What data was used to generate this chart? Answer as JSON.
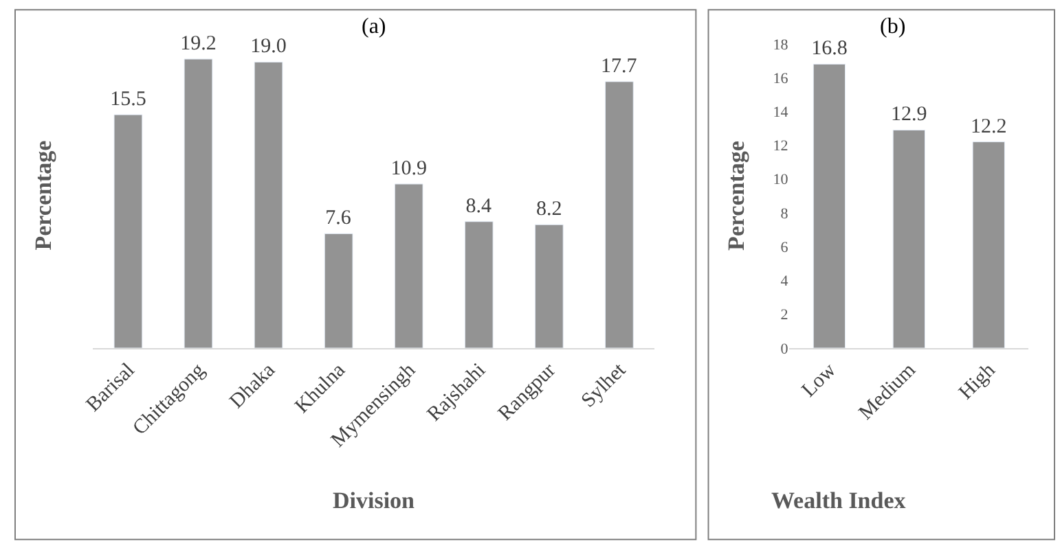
{
  "chart_data": [
    {
      "type": "bar",
      "title": "(a)",
      "xlabel": "Division",
      "ylabel": "Percentage",
      "categories": [
        "Barisal",
        "Chittagong",
        "Dhaka",
        "Khulna",
        "Mymensingh",
        "Rajshahi",
        "Rangpur",
        "Sylhet"
      ],
      "values": [
        15.5,
        19.2,
        19.0,
        7.6,
        10.9,
        8.4,
        8.2,
        17.7
      ],
      "color": "#939393",
      "value_labels": [
        "15.5",
        "19.2",
        "19.0",
        "7.6",
        "10.9",
        "8.4",
        "8.2",
        "17.7"
      ],
      "tick_labels": "x",
      "grid": false
    },
    {
      "type": "bar",
      "title": "(b)",
      "xlabel": "Wealth Index",
      "ylabel": "Percentage",
      "categories": [
        "Low",
        "Medium",
        "High"
      ],
      "values": [
        16.8,
        12.9,
        12.2
      ],
      "color": "#939393",
      "value_labels": [
        "16.8",
        "12.9",
        "12.2"
      ],
      "ylim": [
        0,
        18
      ],
      "yticks": [
        0,
        2,
        4,
        6,
        8,
        10,
        12,
        14,
        16,
        18
      ],
      "grid": false
    }
  ]
}
